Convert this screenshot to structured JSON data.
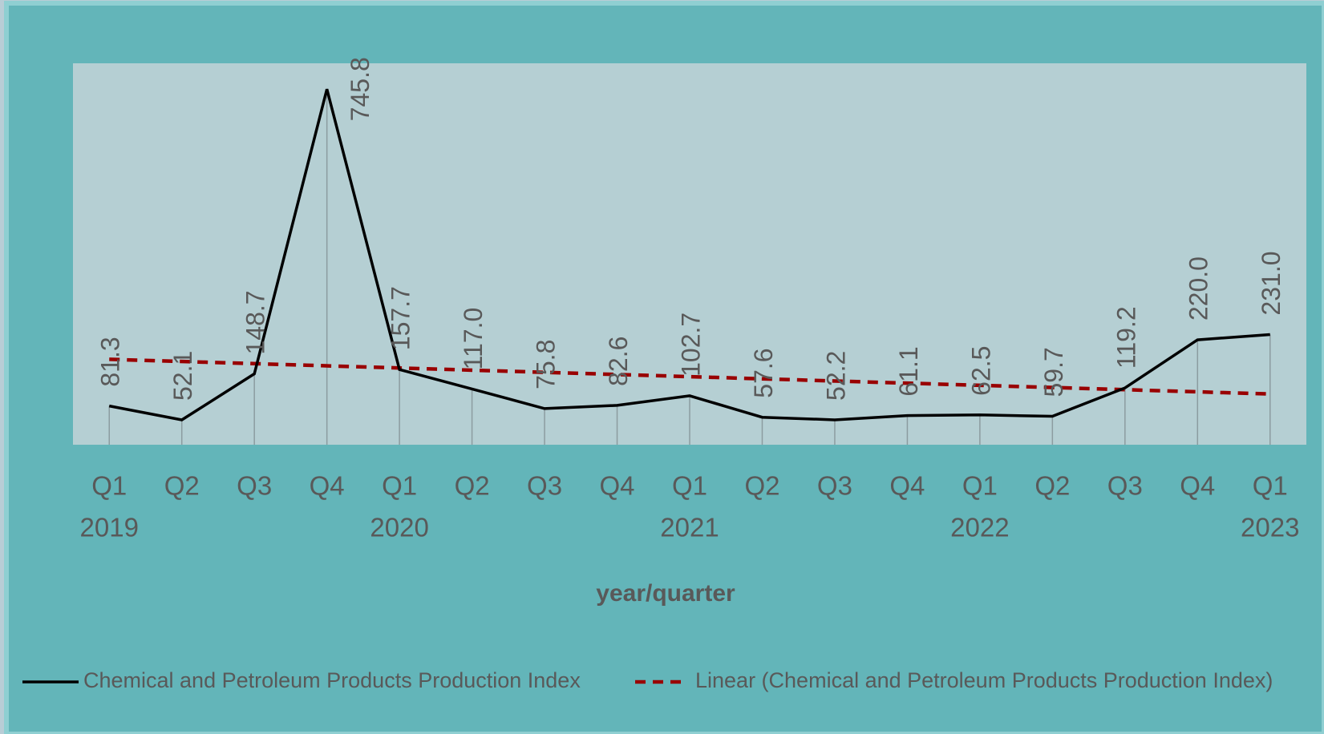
{
  "chart_data": {
    "type": "line",
    "x_label": "year/quarter",
    "categories": [
      "Q1",
      "Q2",
      "Q3",
      "Q4",
      "Q1",
      "Q2",
      "Q3",
      "Q4",
      "Q1",
      "Q2",
      "Q3",
      "Q4",
      "Q1",
      "Q2",
      "Q3",
      "Q4",
      "Q1"
    ],
    "years": [
      "2019",
      null,
      null,
      null,
      "2020",
      null,
      null,
      null,
      "2021",
      null,
      null,
      null,
      "2022",
      null,
      null,
      null,
      "2023"
    ],
    "series": [
      {
        "name": "Chemical and Petroleum Products Production Index",
        "color": "#000000",
        "values": [
          81.3,
          52.1,
          148.7,
          745.8,
          157.7,
          117.0,
          75.8,
          82.6,
          102.7,
          57.6,
          52.2,
          61.1,
          62.5,
          59.7,
          119.2,
          220.0,
          231.0
        ],
        "value_labels": [
          "81.3",
          "52.1",
          "148.7",
          "745.8",
          "157.7",
          "117.0",
          "75.8",
          "82.6",
          "102.7",
          "57.6",
          "52.2",
          "61.1",
          "62.5",
          "59.7",
          "119.2",
          "220.0",
          "231.0"
        ]
      }
    ],
    "trendline": {
      "name": "Linear (Chemical and Petroleum Products Production Index)",
      "kind": "linear",
      "color": "#990000"
    },
    "ylim": [
      0,
      800
    ],
    "drop_lines": true,
    "legend": "bottom"
  }
}
